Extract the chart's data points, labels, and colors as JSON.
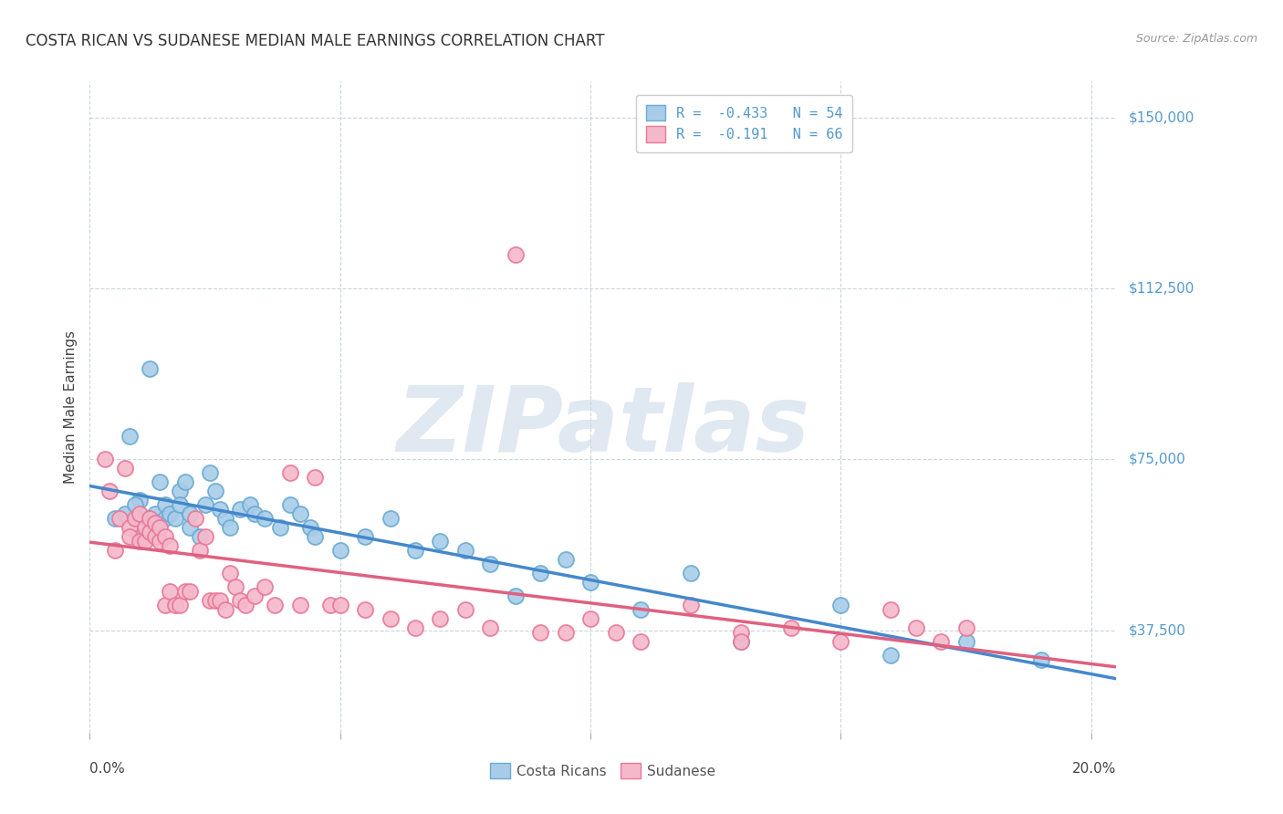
{
  "title": "COSTA RICAN VS SUDANESE MEDIAN MALE EARNINGS CORRELATION CHART",
  "source": "Source: ZipAtlas.com",
  "ylabel": "Median Male Earnings",
  "ytick_labels": [
    "$37,500",
    "$75,000",
    "$112,500",
    "$150,000"
  ],
  "ytick_values": [
    37500,
    75000,
    112500,
    150000
  ],
  "ylim": [
    15000,
    158000
  ],
  "xlim": [
    0.0,
    0.205
  ],
  "costa_rican_face": "#a8cce8",
  "costa_rican_edge": "#6aaad4",
  "sudanese_face": "#f5b8ca",
  "sudanese_edge": "#e87898",
  "trend_cr_color": "#4488cc",
  "trend_sud_color": "#e06080",
  "ytick_color": "#5599cc",
  "watermark_color": "#ccd9e8",
  "legend1_label0": "R =  -0.433   N = 54",
  "legend1_label1": "R =  -0.191   N = 66",
  "costa_ricans_x": [
    0.005,
    0.007,
    0.008,
    0.01,
    0.01,
    0.011,
    0.012,
    0.013,
    0.013,
    0.014,
    0.015,
    0.015,
    0.016,
    0.017,
    0.018,
    0.018,
    0.019,
    0.02,
    0.02,
    0.022,
    0.023,
    0.024,
    0.025,
    0.026,
    0.027,
    0.028,
    0.03,
    0.032,
    0.033,
    0.035,
    0.038,
    0.04,
    0.042,
    0.044,
    0.045,
    0.05,
    0.055,
    0.06,
    0.065,
    0.07,
    0.075,
    0.08,
    0.085,
    0.09,
    0.095,
    0.1,
    0.11,
    0.12,
    0.13,
    0.15,
    0.16,
    0.175,
    0.19,
    0.009
  ],
  "costa_ricans_y": [
    62000,
    63000,
    80000,
    58000,
    66000,
    62000,
    95000,
    60000,
    63000,
    70000,
    65000,
    62000,
    63000,
    62000,
    68000,
    65000,
    70000,
    60000,
    63000,
    58000,
    65000,
    72000,
    68000,
    64000,
    62000,
    60000,
    64000,
    65000,
    63000,
    62000,
    60000,
    65000,
    63000,
    60000,
    58000,
    55000,
    58000,
    62000,
    55000,
    57000,
    55000,
    52000,
    45000,
    50000,
    53000,
    48000,
    42000,
    50000,
    35000,
    43000,
    32000,
    35000,
    31000,
    65000
  ],
  "sudanese_x": [
    0.003,
    0.004,
    0.005,
    0.006,
    0.007,
    0.008,
    0.008,
    0.009,
    0.01,
    0.01,
    0.011,
    0.011,
    0.012,
    0.012,
    0.013,
    0.013,
    0.014,
    0.014,
    0.015,
    0.015,
    0.016,
    0.016,
    0.017,
    0.018,
    0.019,
    0.02,
    0.021,
    0.022,
    0.023,
    0.024,
    0.025,
    0.026,
    0.027,
    0.028,
    0.029,
    0.03,
    0.031,
    0.033,
    0.035,
    0.037,
    0.04,
    0.042,
    0.045,
    0.048,
    0.05,
    0.055,
    0.06,
    0.065,
    0.07,
    0.075,
    0.08,
    0.085,
    0.09,
    0.095,
    0.1,
    0.11,
    0.12,
    0.13,
    0.14,
    0.15,
    0.16,
    0.165,
    0.17,
    0.175,
    0.13,
    0.105
  ],
  "sudanese_y": [
    75000,
    68000,
    55000,
    62000,
    73000,
    60000,
    58000,
    62000,
    57000,
    63000,
    57000,
    60000,
    59000,
    62000,
    58000,
    61000,
    57000,
    60000,
    58000,
    43000,
    56000,
    46000,
    43000,
    43000,
    46000,
    46000,
    62000,
    55000,
    58000,
    44000,
    44000,
    44000,
    42000,
    50000,
    47000,
    44000,
    43000,
    45000,
    47000,
    43000,
    72000,
    43000,
    71000,
    43000,
    43000,
    42000,
    40000,
    38000,
    40000,
    42000,
    38000,
    120000,
    37000,
    37000,
    40000,
    35000,
    43000,
    37000,
    38000,
    35000,
    42000,
    38000,
    35000,
    38000,
    35000,
    37000
  ]
}
